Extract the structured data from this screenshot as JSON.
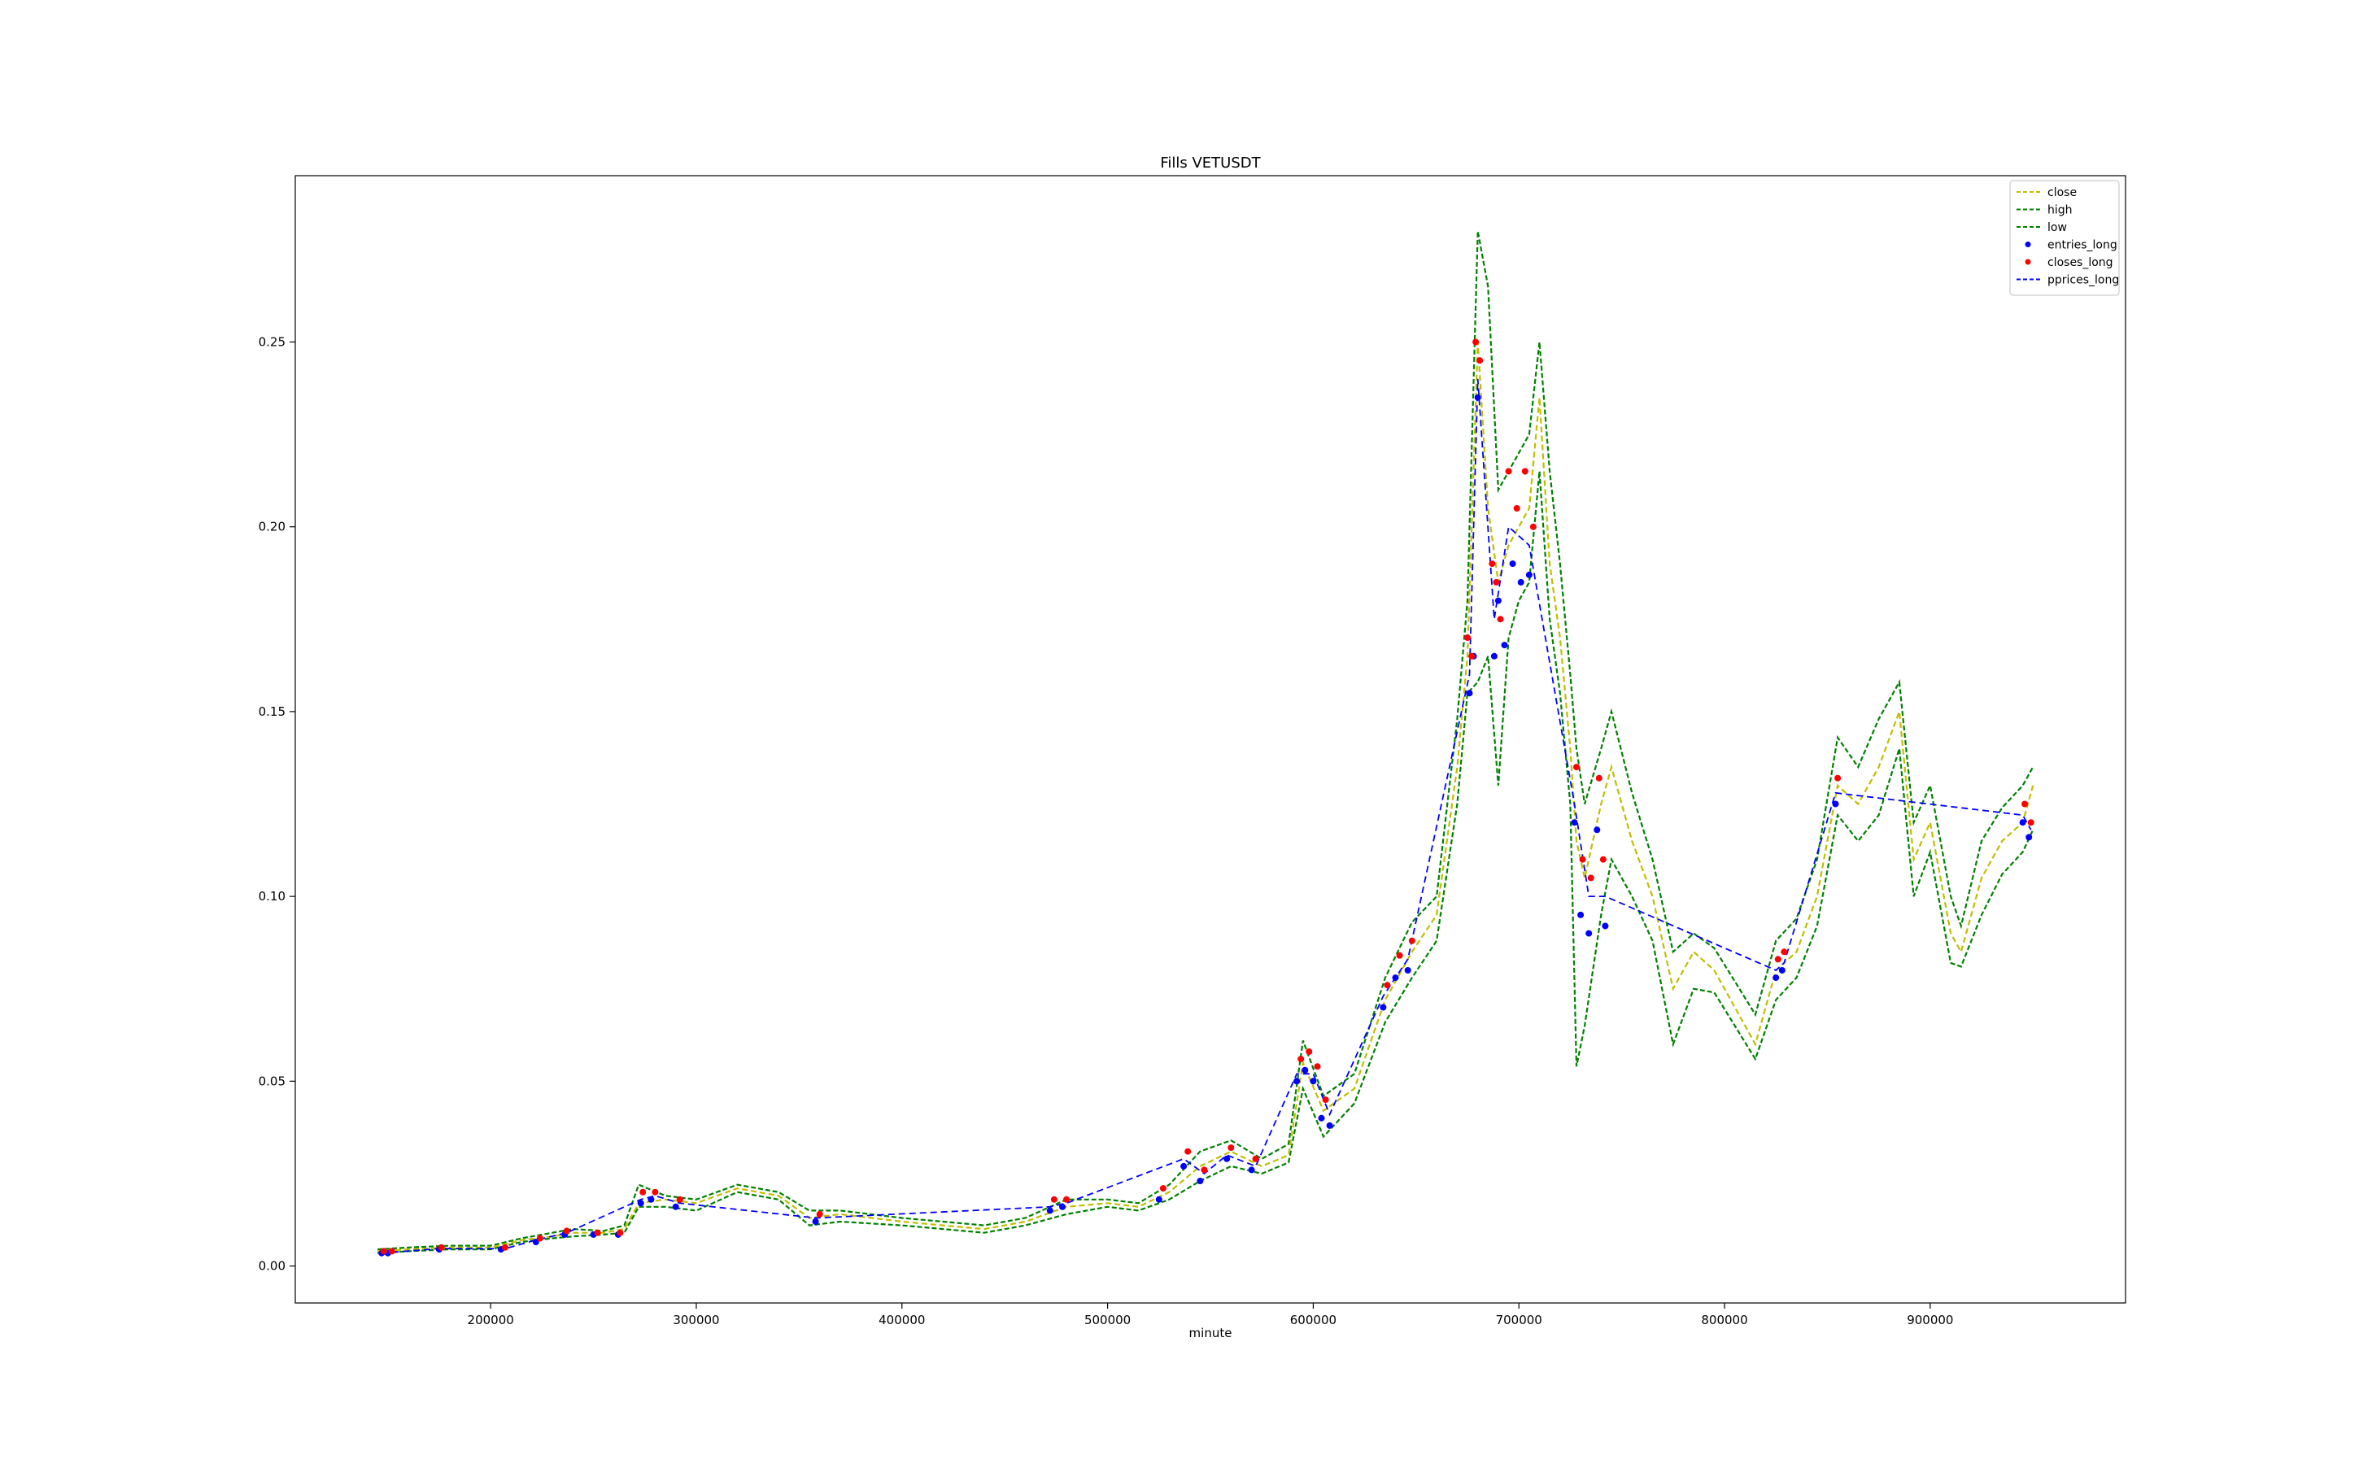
{
  "chart_data": {
    "type": "line",
    "title": "Fills VETUSDT",
    "xlabel": "minute",
    "ylabel": "",
    "xlim": [
      105000,
      995000
    ],
    "ylim": [
      -0.01,
      0.295
    ],
    "x_ticks": [
      200000,
      300000,
      400000,
      500000,
      600000,
      700000,
      800000,
      900000
    ],
    "x_tick_labels": [
      "200000",
      "300000",
      "400000",
      "500000",
      "600000",
      "700000",
      "800000",
      "900000"
    ],
    "y_ticks": [
      0.0,
      0.05,
      0.1,
      0.15,
      0.2,
      0.25
    ],
    "y_tick_labels": [
      "0.00",
      "0.05",
      "0.10",
      "0.15",
      "0.20",
      "0.25"
    ],
    "grid": false,
    "legend_position": "top-right",
    "colors": {
      "close": "#bfbf00",
      "high": "#008000",
      "low": "#008000",
      "entries": "#0000ff",
      "closes": "#ff0000",
      "pprices": "#0000ff"
    },
    "series": [
      {
        "name": "close",
        "style": "dashed",
        "x": [
          145000,
          160000,
          180000,
          200000,
          215000,
          230000,
          240000,
          255000,
          265000,
          272000,
          285000,
          300000,
          320000,
          340000,
          355000,
          370000,
          400000,
          420000,
          440000,
          460000,
          480000,
          500000,
          515000,
          530000,
          545000,
          560000,
          575000,
          588000,
          595000,
          605000,
          620000,
          635000,
          648000,
          660000,
          670000,
          675000,
          680000,
          685000,
          690000,
          695000,
          700000,
          705000,
          710000,
          715000,
          720000,
          725000,
          728000,
          732000,
          740000,
          745000,
          755000,
          765000,
          775000,
          785000,
          795000,
          805000,
          815000,
          825000,
          835000,
          845000,
          855000,
          865000,
          875000,
          885000,
          892000,
          900000,
          910000,
          915000,
          925000,
          935000,
          945000,
          950000
        ],
        "y": [
          0.004,
          0.0045,
          0.005,
          0.005,
          0.007,
          0.008,
          0.009,
          0.009,
          0.01,
          0.017,
          0.018,
          0.017,
          0.021,
          0.019,
          0.013,
          0.014,
          0.012,
          0.011,
          0.01,
          0.012,
          0.016,
          0.017,
          0.016,
          0.02,
          0.027,
          0.031,
          0.027,
          0.03,
          0.055,
          0.042,
          0.048,
          0.072,
          0.085,
          0.095,
          0.135,
          0.165,
          0.25,
          0.205,
          0.185,
          0.195,
          0.2,
          0.205,
          0.235,
          0.19,
          0.17,
          0.14,
          0.115,
          0.105,
          0.125,
          0.135,
          0.115,
          0.1,
          0.075,
          0.085,
          0.08,
          0.07,
          0.06,
          0.08,
          0.085,
          0.1,
          0.13,
          0.125,
          0.135,
          0.15,
          0.11,
          0.12,
          0.09,
          0.085,
          0.105,
          0.115,
          0.12,
          0.13
        ]
      },
      {
        "name": "high",
        "style": "dashed",
        "x": [
          145000,
          160000,
          180000,
          200000,
          215000,
          230000,
          240000,
          255000,
          265000,
          272000,
          285000,
          300000,
          320000,
          340000,
          355000,
          370000,
          400000,
          420000,
          440000,
          460000,
          480000,
          500000,
          515000,
          530000,
          545000,
          560000,
          575000,
          588000,
          595000,
          605000,
          620000,
          635000,
          648000,
          660000,
          670000,
          675000,
          680000,
          685000,
          690000,
          695000,
          700000,
          705000,
          710000,
          715000,
          720000,
          725000,
          728000,
          732000,
          740000,
          745000,
          755000,
          765000,
          775000,
          785000,
          795000,
          805000,
          815000,
          825000,
          835000,
          845000,
          855000,
          865000,
          875000,
          885000,
          892000,
          900000,
          910000,
          915000,
          925000,
          935000,
          945000,
          950000
        ],
        "y": [
          0.0045,
          0.005,
          0.0055,
          0.0055,
          0.0075,
          0.009,
          0.01,
          0.0095,
          0.011,
          0.022,
          0.019,
          0.018,
          0.022,
          0.02,
          0.015,
          0.015,
          0.013,
          0.012,
          0.011,
          0.013,
          0.018,
          0.018,
          0.017,
          0.022,
          0.031,
          0.034,
          0.029,
          0.033,
          0.061,
          0.046,
          0.052,
          0.078,
          0.093,
          0.1,
          0.148,
          0.18,
          0.28,
          0.265,
          0.21,
          0.215,
          0.22,
          0.225,
          0.25,
          0.215,
          0.19,
          0.16,
          0.14,
          0.125,
          0.14,
          0.15,
          0.128,
          0.11,
          0.085,
          0.09,
          0.086,
          0.077,
          0.068,
          0.088,
          0.094,
          0.11,
          0.143,
          0.135,
          0.148,
          0.158,
          0.12,
          0.13,
          0.1,
          0.092,
          0.115,
          0.124,
          0.13,
          0.135
        ]
      },
      {
        "name": "low",
        "style": "dashed",
        "x": [
          145000,
          160000,
          180000,
          200000,
          215000,
          230000,
          240000,
          255000,
          265000,
          272000,
          285000,
          300000,
          320000,
          340000,
          355000,
          370000,
          400000,
          420000,
          440000,
          460000,
          480000,
          500000,
          515000,
          530000,
          545000,
          560000,
          575000,
          588000,
          595000,
          605000,
          620000,
          635000,
          648000,
          660000,
          670000,
          675000,
          680000,
          685000,
          690000,
          695000,
          700000,
          705000,
          710000,
          715000,
          720000,
          725000,
          728000,
          732000,
          740000,
          745000,
          755000,
          765000,
          775000,
          785000,
          795000,
          805000,
          815000,
          825000,
          835000,
          845000,
          855000,
          865000,
          875000,
          885000,
          892000,
          900000,
          910000,
          915000,
          925000,
          935000,
          945000,
          950000
        ],
        "y": [
          0.0035,
          0.004,
          0.0045,
          0.0045,
          0.0065,
          0.0075,
          0.008,
          0.0085,
          0.009,
          0.016,
          0.016,
          0.015,
          0.02,
          0.018,
          0.011,
          0.012,
          0.011,
          0.01,
          0.009,
          0.011,
          0.014,
          0.016,
          0.015,
          0.018,
          0.023,
          0.027,
          0.025,
          0.028,
          0.048,
          0.035,
          0.044,
          0.066,
          0.078,
          0.088,
          0.125,
          0.155,
          0.158,
          0.165,
          0.13,
          0.17,
          0.18,
          0.185,
          0.215,
          0.175,
          0.155,
          0.125,
          0.054,
          0.065,
          0.095,
          0.11,
          0.1,
          0.088,
          0.06,
          0.075,
          0.074,
          0.065,
          0.056,
          0.072,
          0.078,
          0.092,
          0.122,
          0.115,
          0.122,
          0.14,
          0.1,
          0.112,
          0.082,
          0.081,
          0.095,
          0.106,
          0.112,
          0.118
        ]
      },
      {
        "name": "entries_long",
        "style": "points",
        "x": [
          147000,
          150000,
          175000,
          205000,
          222000,
          236000,
          250000,
          262000,
          273000,
          278000,
          290000,
          358000,
          472000,
          478000,
          525000,
          537000,
          545000,
          558000,
          570000,
          592000,
          596000,
          600000,
          604000,
          608000,
          634000,
          640000,
          646000,
          676000,
          678000,
          680000,
          688000,
          690000,
          693000,
          697000,
          701000,
          705000,
          727000,
          730000,
          734000,
          738000,
          742000,
          825000,
          828000,
          854000,
          945000,
          948000
        ],
        "y": [
          0.0035,
          0.0035,
          0.0045,
          0.0045,
          0.0065,
          0.0085,
          0.0085,
          0.0085,
          0.017,
          0.018,
          0.016,
          0.012,
          0.015,
          0.016,
          0.018,
          0.027,
          0.023,
          0.029,
          0.026,
          0.05,
          0.053,
          0.05,
          0.04,
          0.038,
          0.07,
          0.078,
          0.08,
          0.155,
          0.165,
          0.235,
          0.165,
          0.18,
          0.168,
          0.19,
          0.185,
          0.187,
          0.12,
          0.095,
          0.09,
          0.118,
          0.092,
          0.078,
          0.08,
          0.125,
          0.12,
          0.116
        ]
      },
      {
        "name": "closes_long",
        "style": "points",
        "x": [
          148000,
          152000,
          176000,
          207000,
          224000,
          237000,
          252000,
          263000,
          274000,
          280000,
          292000,
          360000,
          474000,
          480000,
          527000,
          539000,
          547000,
          560000,
          572000,
          594000,
          598000,
          602000,
          606000,
          636000,
          642000,
          648000,
          675000,
          677000,
          679000,
          681000,
          687000,
          689000,
          691000,
          695000,
          699000,
          703000,
          707000,
          728000,
          731000,
          735000,
          739000,
          741000,
          826000,
          829000,
          855000,
          946000,
          949000
        ],
        "y": [
          0.004,
          0.004,
          0.005,
          0.005,
          0.0075,
          0.0095,
          0.009,
          0.009,
          0.02,
          0.02,
          0.018,
          0.014,
          0.018,
          0.018,
          0.021,
          0.031,
          0.026,
          0.032,
          0.029,
          0.056,
          0.058,
          0.054,
          0.045,
          0.076,
          0.084,
          0.088,
          0.17,
          0.165,
          0.25,
          0.245,
          0.19,
          0.185,
          0.175,
          0.215,
          0.205,
          0.215,
          0.2,
          0.135,
          0.11,
          0.105,
          0.132,
          0.11,
          0.083,
          0.085,
          0.132,
          0.125,
          0.12
        ]
      },
      {
        "name": "pprices_long",
        "style": "dashed",
        "x": [
          147000,
          152000,
          175000,
          207000,
          222000,
          237000,
          273000,
          280000,
          292000,
          358000,
          472000,
          480000,
          537000,
          547000,
          558000,
          572000,
          592000,
          600000,
          608000,
          634000,
          646000,
          676000,
          680000,
          688000,
          695000,
          705000,
          727000,
          734000,
          742000,
          825000,
          829000,
          854000,
          945000,
          949000
        ],
        "y": [
          0.0037,
          0.0037,
          0.0047,
          0.0047,
          0.007,
          0.009,
          0.018,
          0.019,
          0.017,
          0.013,
          0.016,
          0.017,
          0.029,
          0.025,
          0.03,
          0.027,
          0.052,
          0.052,
          0.041,
          0.073,
          0.083,
          0.16,
          0.24,
          0.175,
          0.2,
          0.195,
          0.125,
          0.1,
          0.1,
          0.08,
          0.082,
          0.128,
          0.122,
          0.118
        ]
      }
    ]
  }
}
